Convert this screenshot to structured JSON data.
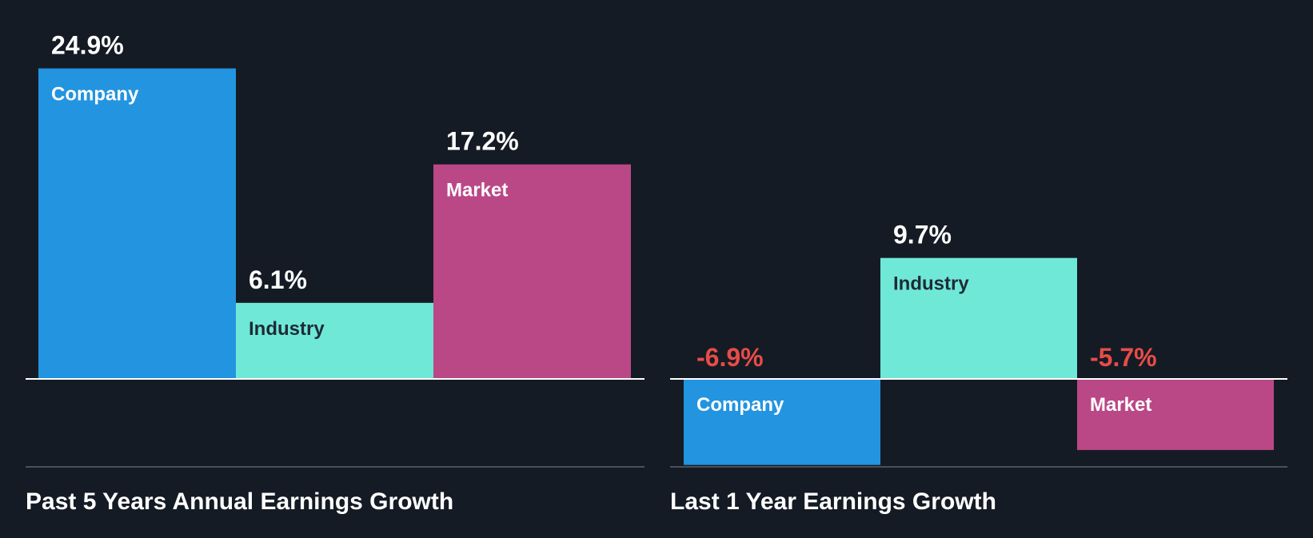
{
  "colors": {
    "background": "#151b24",
    "company": "#2394e0",
    "industry": "#6fe8d8",
    "market": "#ba4886",
    "positive_label": "#ffffff",
    "negative_label": "#e84c48",
    "bar_text_light": "#ffffff",
    "bar_text_dark": "#1e2b36",
    "baseline": "#ffffff",
    "footer_rule": "#4a5058",
    "title": "#ffffff"
  },
  "chart_data": [
    {
      "type": "bar",
      "title": "Past 5 Years Annual Earnings Growth",
      "categories": [
        "Company",
        "Industry",
        "Market"
      ],
      "values": [
        24.9,
        6.1,
        17.2
      ],
      "value_labels": [
        "24.9%",
        "6.1%",
        "17.2%"
      ],
      "unit": "%",
      "ylim": [
        -7,
        24.9
      ],
      "grid": false,
      "legend": "none"
    },
    {
      "type": "bar",
      "title": "Last 1 Year Earnings Growth",
      "categories": [
        "Company",
        "Industry",
        "Market"
      ],
      "values": [
        -6.9,
        9.7,
        -5.7
      ],
      "value_labels": [
        "-6.9%",
        "9.7%",
        "-5.7%"
      ],
      "unit": "%",
      "ylim": [
        -7,
        24.9
      ],
      "grid": false,
      "legend": "none"
    }
  ]
}
